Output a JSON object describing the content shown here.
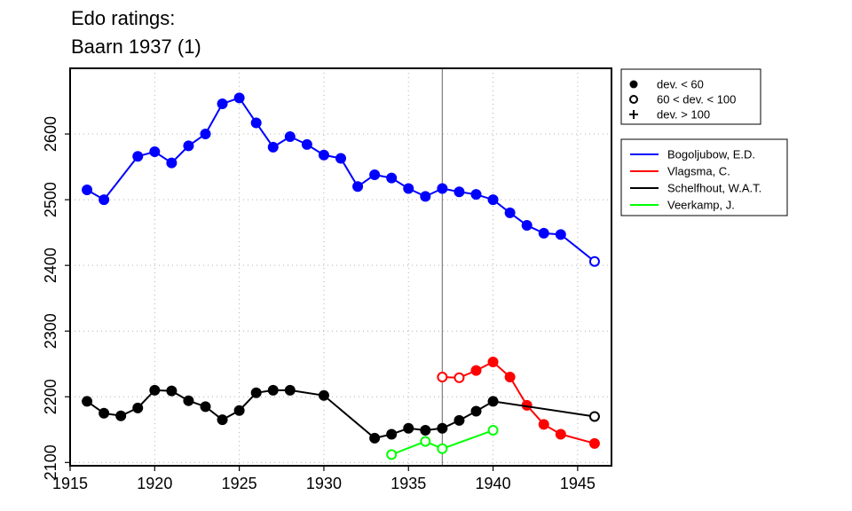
{
  "chart_data": {
    "type": "line",
    "title_lines": [
      "Edo ratings:",
      "Baarn 1937 (1)"
    ],
    "xlabel": "",
    "ylabel": "",
    "xlim": [
      1915,
      1947
    ],
    "ylim": [
      2095,
      2700
    ],
    "x_ticks": [
      1915,
      1920,
      1925,
      1930,
      1935,
      1940,
      1945
    ],
    "y_ticks": [
      2100,
      2200,
      2300,
      2400,
      2500,
      2600
    ],
    "grid": "dotted",
    "reference_line_x": 1937,
    "legend_position": "top-right",
    "marker_legend": [
      {
        "marker": "filled",
        "label": "dev. < 60"
      },
      {
        "marker": "open",
        "label": "60 < dev. < 100"
      },
      {
        "marker": "plus",
        "label": "dev. > 100"
      }
    ],
    "series": [
      {
        "name": "Bogoljubow, E.D.",
        "color": "#0000ff",
        "points": [
          {
            "x": 1916,
            "y": 2515,
            "m": "filled"
          },
          {
            "x": 1917,
            "y": 2500,
            "m": "filled"
          },
          {
            "x": 1919,
            "y": 2566,
            "m": "filled"
          },
          {
            "x": 1920,
            "y": 2573,
            "m": "filled"
          },
          {
            "x": 1921,
            "y": 2556,
            "m": "filled"
          },
          {
            "x": 1922,
            "y": 2582,
            "m": "filled"
          },
          {
            "x": 1923,
            "y": 2600,
            "m": "filled"
          },
          {
            "x": 1924,
            "y": 2646,
            "m": "filled"
          },
          {
            "x": 1925,
            "y": 2655,
            "m": "filled"
          },
          {
            "x": 1926,
            "y": 2617,
            "m": "filled"
          },
          {
            "x": 1927,
            "y": 2580,
            "m": "filled"
          },
          {
            "x": 1928,
            "y": 2596,
            "m": "filled"
          },
          {
            "x": 1929,
            "y": 2584,
            "m": "filled"
          },
          {
            "x": 1930,
            "y": 2568,
            "m": "filled"
          },
          {
            "x": 1931,
            "y": 2563,
            "m": "filled"
          },
          {
            "x": 1932,
            "y": 2520,
            "m": "filled"
          },
          {
            "x": 1933,
            "y": 2538,
            "m": "filled"
          },
          {
            "x": 1934,
            "y": 2533,
            "m": "filled"
          },
          {
            "x": 1935,
            "y": 2517,
            "m": "filled"
          },
          {
            "x": 1936,
            "y": 2505,
            "m": "filled"
          },
          {
            "x": 1937,
            "y": 2517,
            "m": "filled"
          },
          {
            "x": 1938,
            "y": 2512,
            "m": "filled"
          },
          {
            "x": 1939,
            "y": 2508,
            "m": "filled"
          },
          {
            "x": 1940,
            "y": 2500,
            "m": "filled"
          },
          {
            "x": 1941,
            "y": 2480,
            "m": "filled"
          },
          {
            "x": 1942,
            "y": 2461,
            "m": "filled"
          },
          {
            "x": 1943,
            "y": 2449,
            "m": "filled"
          },
          {
            "x": 1944,
            "y": 2447,
            "m": "filled"
          },
          {
            "x": 1946,
            "y": 2406,
            "m": "open"
          }
        ]
      },
      {
        "name": "Vlagsma, C.",
        "color": "#ff0000",
        "points": [
          {
            "x": 1937,
            "y": 2230,
            "m": "open"
          },
          {
            "x": 1938,
            "y": 2229,
            "m": "open"
          },
          {
            "x": 1939,
            "y": 2240,
            "m": "filled"
          },
          {
            "x": 1940,
            "y": 2253,
            "m": "filled"
          },
          {
            "x": 1941,
            "y": 2230,
            "m": "filled"
          },
          {
            "x": 1942,
            "y": 2187,
            "m": "filled"
          },
          {
            "x": 1943,
            "y": 2158,
            "m": "filled"
          },
          {
            "x": 1944,
            "y": 2143,
            "m": "filled"
          },
          {
            "x": 1946,
            "y": 2129,
            "m": "filled"
          }
        ]
      },
      {
        "name": "Schelfhout, W.A.T.",
        "color": "#000000",
        "points": [
          {
            "x": 1916,
            "y": 2193,
            "m": "filled"
          },
          {
            "x": 1917,
            "y": 2175,
            "m": "filled"
          },
          {
            "x": 1918,
            "y": 2171,
            "m": "filled"
          },
          {
            "x": 1919,
            "y": 2183,
            "m": "filled"
          },
          {
            "x": 1920,
            "y": 2210,
            "m": "filled"
          },
          {
            "x": 1921,
            "y": 2209,
            "m": "filled"
          },
          {
            "x": 1922,
            "y": 2194,
            "m": "filled"
          },
          {
            "x": 1923,
            "y": 2185,
            "m": "filled"
          },
          {
            "x": 1924,
            "y": 2165,
            "m": "filled"
          },
          {
            "x": 1925,
            "y": 2179,
            "m": "filled"
          },
          {
            "x": 1926,
            "y": 2206,
            "m": "filled"
          },
          {
            "x": 1927,
            "y": 2210,
            "m": "filled"
          },
          {
            "x": 1928,
            "y": 2210,
            "m": "filled"
          },
          {
            "x": 1930,
            "y": 2202,
            "m": "filled"
          },
          {
            "x": 1933,
            "y": 2137,
            "m": "filled"
          },
          {
            "x": 1934,
            "y": 2143,
            "m": "filled"
          },
          {
            "x": 1935,
            "y": 2152,
            "m": "filled"
          },
          {
            "x": 1936,
            "y": 2149,
            "m": "filled"
          },
          {
            "x": 1937,
            "y": 2152,
            "m": "filled"
          },
          {
            "x": 1938,
            "y": 2164,
            "m": "filled"
          },
          {
            "x": 1939,
            "y": 2178,
            "m": "filled"
          },
          {
            "x": 1940,
            "y": 2193,
            "m": "filled"
          },
          {
            "x": 1946,
            "y": 2170,
            "m": "open"
          }
        ]
      },
      {
        "name": "Veerkamp, J.",
        "color": "#00ff00",
        "points": [
          {
            "x": 1934,
            "y": 2112,
            "m": "open"
          },
          {
            "x": 1936,
            "y": 2132,
            "m": "open"
          },
          {
            "x": 1937,
            "y": 2121,
            "m": "open"
          },
          {
            "x": 1940,
            "y": 2149,
            "m": "open"
          }
        ]
      }
    ]
  }
}
